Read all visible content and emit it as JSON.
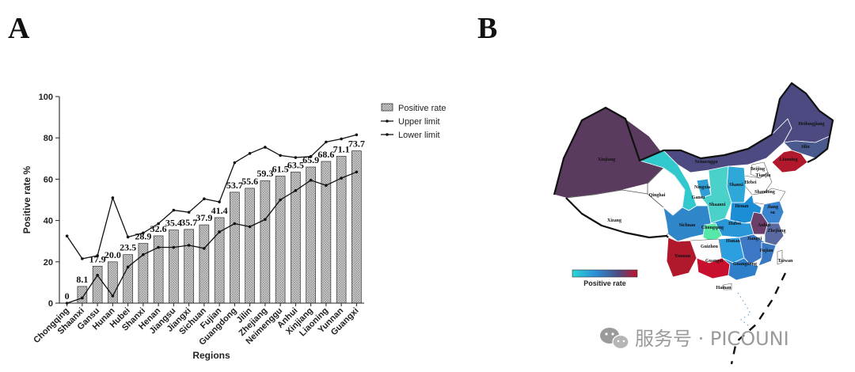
{
  "panels": {
    "a": "A",
    "b": "B"
  },
  "chart_data": [
    {
      "type": "bar",
      "xlabel": "Regions",
      "ylabel": "Positive rate  %",
      "ylim": [
        0,
        100
      ],
      "yticks": [
        0,
        20,
        40,
        60,
        80,
        100
      ],
      "categories": [
        "Chongqing",
        "Shaanxi",
        "Gansu",
        "Hunan",
        "Hubei",
        "Shanxi",
        "Henan",
        "Jiangsu",
        "Jiangxi",
        "Sichuan",
        "Fujian",
        "Guangdong",
        "Jilin",
        "Zhejiang",
        "Neimenggu",
        "Anhui",
        "Xinjiang",
        "Liaoning",
        "Yunnan",
        "Guangxi"
      ],
      "series": [
        {
          "name": "Positive rate",
          "kind": "bar",
          "values": [
            0,
            8.1,
            17.9,
            20.0,
            23.5,
            28.9,
            32.6,
            35.4,
            35.7,
            37.9,
            41.4,
            53.7,
            55.6,
            59.3,
            61.5,
            63.5,
            65.9,
            68.6,
            71.1,
            73.7
          ],
          "labels": [
            "0",
            "8.1",
            "17.9",
            "20.0",
            "23.5",
            "28.9",
            "32.6",
            "35.4",
            "35.7",
            "37.9",
            "41.4",
            "53.7",
            "55.6",
            "59.3",
            "61.5",
            "63.5",
            "65.9",
            "68.6",
            "71.1",
            "73.7"
          ]
        },
        {
          "name": "Upper limit",
          "kind": "line",
          "values": [
            32.5,
            21.5,
            23,
            51,
            32,
            34,
            38.5,
            45,
            44,
            50.5,
            49,
            68,
            72.5,
            75.5,
            71.5,
            70.5,
            71,
            78,
            79.5,
            81.5
          ]
        },
        {
          "name": "Lower limit",
          "kind": "line",
          "values": [
            0,
            2.5,
            13.5,
            3.5,
            17.5,
            23.5,
            27,
            27,
            28,
            26.5,
            34.5,
            38.5,
            37,
            40.5,
            50,
            54.5,
            59.5,
            57,
            60.5,
            63.5
          ]
        }
      ],
      "legend": "top-right",
      "grid": false
    },
    {
      "type": "heatmap",
      "map": "China provinces shaded by positive rate",
      "colorbar_label": "Positive rate",
      "colors": [
        "#2ad7d4",
        "#2b8fd6",
        "#4a4f86",
        "#c0142b"
      ],
      "regions": [
        {
          "name": "Xinjiang",
          "label": "Xinjiang",
          "value": 65.9
        },
        {
          "name": "Xizang",
          "label": "Xizang",
          "value": null
        },
        {
          "name": "Qinghai",
          "label": "Qinghai",
          "value": null
        },
        {
          "name": "Gansu",
          "label": "Gansu",
          "value": 17.9
        },
        {
          "name": "Neimenggu",
          "label": "Neimenggu",
          "value": 61.5
        },
        {
          "name": "Heilongjiang",
          "label": "Heilongjiang",
          "value": null
        },
        {
          "name": "Jilin",
          "label": "Jilin",
          "value": 55.6
        },
        {
          "name": "Liaoning",
          "label": "Liaoning",
          "value": 68.6
        },
        {
          "name": "Beijing",
          "label": "Beijing",
          "value": null
        },
        {
          "name": "Tianjin",
          "label": "Tianjin",
          "value": null
        },
        {
          "name": "Hebei",
          "label": "Hebei",
          "value": null
        },
        {
          "name": "Shandong",
          "label": "Shandong",
          "value": null
        },
        {
          "name": "Ningxia",
          "label": "Ningxia",
          "value": null
        },
        {
          "name": "Shanxi",
          "label": "Shanxi",
          "value": 28.9
        },
        {
          "name": "Shaanxi",
          "label": "Shaanxi",
          "value": 8.1
        },
        {
          "name": "Henan",
          "label": "Henan",
          "value": 32.6
        },
        {
          "name": "Jiangsu",
          "label": "Jiang\nsu",
          "value": 35.4
        },
        {
          "name": "Anhui",
          "label": "Anhui",
          "value": 63.5
        },
        {
          "name": "Hubei",
          "label": "Hubei",
          "value": 23.5
        },
        {
          "name": "Sichuan",
          "label": "Sichuan",
          "value": 37.9
        },
        {
          "name": "Chongqing",
          "label": "Chongqing",
          "value": 0
        },
        {
          "name": "Zhejiang",
          "label": "Zhejiang",
          "value": 59.3
        },
        {
          "name": "Hunan",
          "label": "Hunan",
          "value": 20.0
        },
        {
          "name": "Jiangxi",
          "label": "Jiangxi",
          "value": 35.7
        },
        {
          "name": "Guizhou",
          "label": "Guizhou",
          "value": null
        },
        {
          "name": "Fujian",
          "label": "Fujian",
          "value": 41.4
        },
        {
          "name": "Yunnan",
          "label": "Yunnan",
          "value": 71.1
        },
        {
          "name": "Guangxi",
          "label": "Guangxi",
          "value": 73.7
        },
        {
          "name": "Guangdong",
          "label": "Guangdong",
          "value": 53.7
        },
        {
          "name": "Taiwan",
          "label": "Taiwan",
          "value": null
        },
        {
          "name": "Hainan",
          "label": "Hainan",
          "value": null
        }
      ]
    }
  ],
  "watermark": {
    "text": "服务号 · PICOUNI"
  }
}
